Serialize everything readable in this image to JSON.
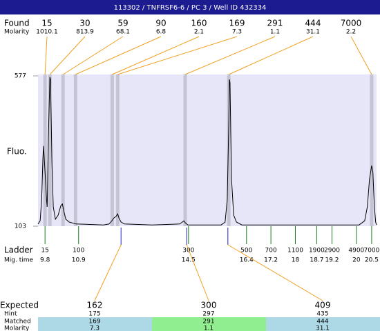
{
  "header": {
    "title": "113302 / TNFRSF6-6 / PC 3 / Well ID 432334"
  },
  "chart_data": {
    "type": "electropherogram",
    "y_label": "Fluo.",
    "ylim": [
      103,
      577
    ],
    "yticks": [
      103,
      577
    ],
    "xlim": [
      9.57,
      20.66
    ],
    "trace": {
      "x": [
        9.57,
        9.64,
        9.69,
        9.73,
        9.75,
        9.8,
        9.85,
        9.87,
        9.91,
        9.96,
        9.98,
        10.03,
        10.07,
        10.14,
        10.23,
        10.32,
        10.37,
        10.41,
        10.48,
        10.59,
        10.82,
        11.72,
        11.9,
        11.99,
        12.06,
        12.13,
        12.18,
        12.22,
        12.29,
        12.4,
        13.31,
        14.21,
        14.3,
        14.35,
        14.39,
        14.48,
        15.57,
        15.7,
        15.77,
        15.82,
        15.84,
        15.86,
        15.91,
        15.98,
        16.07,
        16.25,
        20.09,
        20.27,
        20.36,
        20.43,
        20.5,
        20.54,
        20.59,
        20.63,
        20.66
      ],
      "y": [
        110,
        120,
        186,
        317,
        356,
        273,
        186,
        164,
        381,
        573,
        566,
        294,
        164,
        125,
        138,
        168,
        173,
        153,
        125,
        116,
        110,
        107,
        110,
        120,
        129,
        134,
        142,
        129,
        116,
        110,
        107,
        110,
        116,
        120,
        114,
        107,
        107,
        116,
        186,
        425,
        566,
        555,
        251,
        138,
        116,
        107,
        107,
        120,
        164,
        251,
        294,
        273,
        164,
        116,
        107
      ]
    },
    "found_label": "Found",
    "molarity_label": "Molarity",
    "found": {
      "sizes": [
        15,
        30,
        59,
        90,
        160,
        169,
        291,
        444,
        7000
      ],
      "molarity": [
        1010.1,
        813.9,
        68.1,
        6.8,
        2.1,
        7.3,
        1.1,
        31.1,
        2.2
      ],
      "times": [
        9.8,
        9.96,
        10.39,
        10.8,
        12.0,
        12.18,
        14.39,
        15.82,
        20.5
      ]
    },
    "ladder_label": "Ladder",
    "mig_time_label": "Mig. time",
    "ladder": {
      "sizes": [
        15,
        100,
        300,
        500,
        700,
        1100,
        1900,
        2900,
        4900,
        7000
      ],
      "times": [
        9.8,
        10.9,
        14.5,
        16.4,
        17.2,
        18,
        18.7,
        19.2,
        20,
        20.5
      ]
    },
    "expected": {
      "times": [
        12.29,
        14.44,
        15.79
      ]
    }
  },
  "table": {
    "row_labels": [
      "Expected",
      "Hint",
      "Matched",
      "Molarity"
    ],
    "rows": [
      [
        162,
        300,
        409
      ],
      [
        175,
        297,
        435
      ],
      [
        169,
        291,
        444
      ],
      [
        7.3,
        1.1,
        31.1
      ]
    ]
  }
}
